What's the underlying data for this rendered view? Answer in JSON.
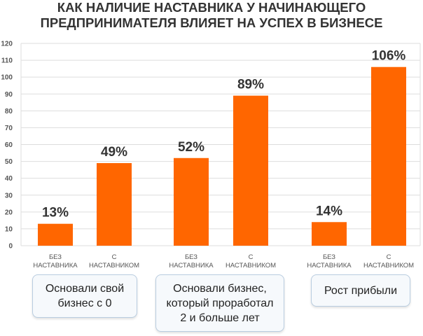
{
  "title_lines": [
    "КАК НАЛИЧИЕ НАСТАВНИКА У НАЧИНАЮЩЕГО",
    "ПРЕДПРИНИМАТЕЛЯ ВЛИЯЕТ НА УСПЕХ В БИЗНЕСЕ"
  ],
  "colors": {
    "bar": "#ff6600",
    "grid": "#dddddd",
    "box_border": "#b9cde0"
  },
  "chart_data": {
    "type": "bar",
    "title": "КАК НАЛИЧИЕ НАСТАВНИКА У НАЧИНАЮЩЕГО ПРЕДПРИНИМАТЕЛЯ ВЛИЯЕТ НА УСПЕХ В БИЗНЕСЕ",
    "ylim": [
      0,
      120
    ],
    "yticks": [
      0,
      10,
      20,
      30,
      40,
      50,
      60,
      70,
      80,
      90,
      100,
      110,
      120
    ],
    "grid": true,
    "groups": [
      {
        "label": "Основали свой бизнес с 0",
        "bars": [
          {
            "category": [
              "БЕЗ",
              "НАСТАВНИКА"
            ],
            "value": 13,
            "label": "13%"
          },
          {
            "category": [
              "С",
              "НАСТАВНИКОМ"
            ],
            "value": 49,
            "label": "49%"
          }
        ]
      },
      {
        "label": "Основали бизнес, который проработал 2 и больше лет",
        "bars": [
          {
            "category": [
              "БЕЗ",
              "НАСТАВНИКА"
            ],
            "value": 52,
            "label": "52%"
          },
          {
            "category": [
              "С",
              "НАСТАВНИКОМ"
            ],
            "value": 89,
            "label": "89%"
          }
        ]
      },
      {
        "label": "Рост прибыли",
        "bars": [
          {
            "category": [
              "БЕЗ",
              "НАСТАВНИКА"
            ],
            "value": 14,
            "label": "14%"
          },
          {
            "category": [
              "С",
              "НАСТАВНИКОМ"
            ],
            "value": 106,
            "label": "106%"
          }
        ]
      }
    ]
  },
  "group_box_lines": [
    [
      "Основали свой",
      "бизнес с 0"
    ],
    [
      "Основали бизнес,",
      "который проработал",
      "2 и больше лет"
    ],
    [
      "Рост прибыли"
    ]
  ]
}
